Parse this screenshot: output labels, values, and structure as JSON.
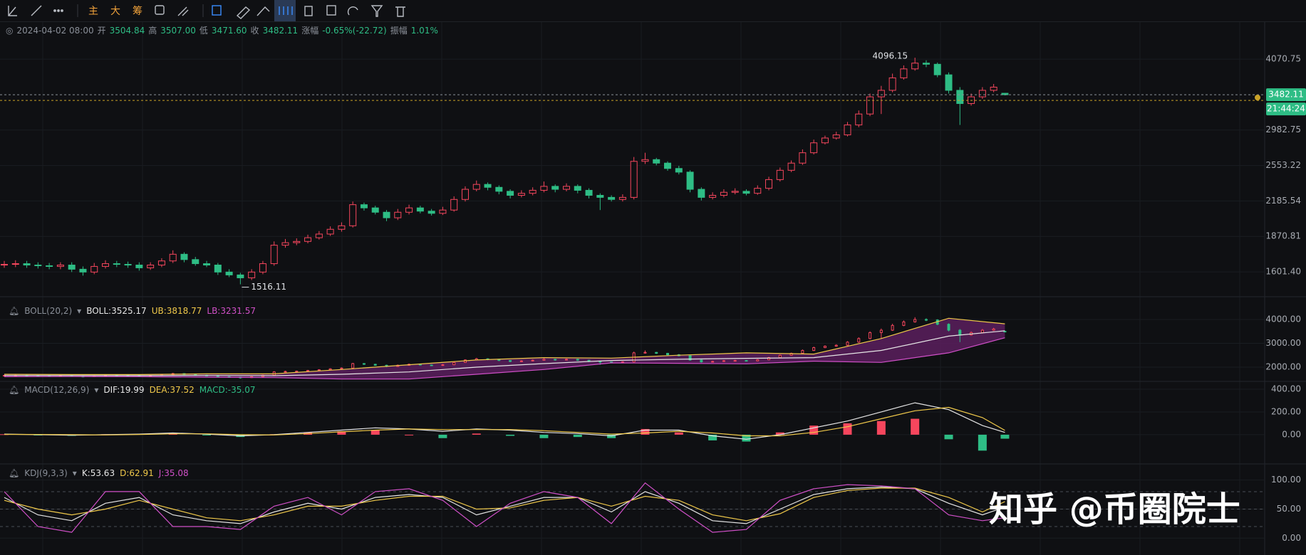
{
  "toolbar": {
    "labels": [
      "主",
      "大",
      "筹"
    ]
  },
  "info": {
    "date": "2024-04-02 08:00",
    "color": "#2ebd85",
    "items": [
      {
        "label": "开",
        "value": "3504.84"
      },
      {
        "label": "高",
        "value": "3507.00"
      },
      {
        "label": "低",
        "value": "3471.60"
      },
      {
        "label": "收",
        "value": "3482.11"
      },
      {
        "label": "涨幅",
        "value": "-0.65%(-22.72)"
      },
      {
        "label": "振幅",
        "value": "1.01%"
      }
    ]
  },
  "watermark": "知乎 @币圈院士",
  "chart_data": [
    {
      "type": "candlestick",
      "log_scale": true,
      "grid": true,
      "up_color": "#f6465d",
      "down_color": "#2ebd85",
      "open": [
        1650,
        1655,
        1660,
        1650,
        1645,
        1640,
        1650,
        1620,
        1600,
        1640,
        1660,
        1655,
        1650,
        1630,
        1650,
        1680,
        1730,
        1690,
        1660,
        1650,
        1600,
        1580,
        1560,
        1600,
        1660,
        1800,
        1820,
        1830,
        1860,
        1890,
        1930,
        1960,
        2150,
        2120,
        2080,
        2030,
        2080,
        2120,
        2090,
        2070,
        2100,
        2200,
        2300,
        2350,
        2320,
        2280,
        2240,
        2260,
        2290,
        2330,
        2300,
        2330,
        2290,
        2240,
        2220,
        2200,
        2220,
        2600,
        2620,
        2580,
        2520,
        2480,
        2300,
        2220,
        2240,
        2270,
        2280,
        2260,
        2310,
        2400,
        2500,
        2580,
        2700,
        2820,
        2880,
        2920,
        3050,
        3200,
        3450,
        3550,
        3750,
        3900,
        4000,
        3980,
        3800,
        3550,
        3350,
        3450,
        3550,
        3504.84
      ],
      "high": [
        1680,
        1685,
        1680,
        1670,
        1665,
        1670,
        1670,
        1640,
        1665,
        1685,
        1680,
        1675,
        1670,
        1670,
        1700,
        1760,
        1745,
        1710,
        1680,
        1665,
        1620,
        1595,
        1620,
        1680,
        1830,
        1850,
        1855,
        1885,
        1915,
        1955,
        1990,
        2180,
        2170,
        2140,
        2100,
        2110,
        2150,
        2140,
        2110,
        2130,
        2230,
        2330,
        2390,
        2370,
        2340,
        2300,
        2290,
        2320,
        2380,
        2350,
        2360,
        2350,
        2310,
        2260,
        2240,
        2250,
        2650,
        2700,
        2640,
        2600,
        2550,
        2500,
        2320,
        2270,
        2300,
        2310,
        2300,
        2340,
        2430,
        2530,
        2610,
        2740,
        2860,
        2910,
        2960,
        3090,
        3250,
        3500,
        3620,
        3820,
        3960,
        4096.15,
        4050,
        4010,
        3840,
        3600,
        3500,
        3600,
        3650,
        3507.0
      ],
      "low": [
        1630,
        1635,
        1630,
        1625,
        1620,
        1620,
        1600,
        1575,
        1585,
        1625,
        1635,
        1630,
        1610,
        1615,
        1635,
        1665,
        1670,
        1645,
        1635,
        1580,
        1565,
        1516.11,
        1545,
        1585,
        1645,
        1780,
        1800,
        1815,
        1845,
        1875,
        1910,
        1945,
        2095,
        2060,
        2000,
        2010,
        2060,
        2070,
        2050,
        2055,
        2085,
        2180,
        2280,
        2290,
        2250,
        2210,
        2220,
        2240,
        2270,
        2270,
        2280,
        2260,
        2210,
        2100,
        2180,
        2180,
        2200,
        2570,
        2555,
        2495,
        2455,
        2270,
        2190,
        2200,
        2220,
        2250,
        2240,
        2245,
        2290,
        2380,
        2480,
        2560,
        2680,
        2800,
        2860,
        2900,
        3020,
        3170,
        3200,
        3520,
        3720,
        3870,
        3930,
        3760,
        3500,
        3050,
        3320,
        3420,
        3520,
        3471.6
      ],
      "close": [
        1655,
        1660,
        1650,
        1645,
        1640,
        1650,
        1620,
        1600,
        1640,
        1660,
        1655,
        1650,
        1630,
        1650,
        1680,
        1730,
        1690,
        1660,
        1650,
        1600,
        1580,
        1560,
        1600,
        1660,
        1800,
        1820,
        1830,
        1860,
        1890,
        1930,
        1960,
        2150,
        2120,
        2080,
        2030,
        2080,
        2120,
        2090,
        2070,
        2100,
        2200,
        2300,
        2350,
        2320,
        2280,
        2240,
        2260,
        2290,
        2330,
        2300,
        2330,
        2290,
        2240,
        2220,
        2200,
        2220,
        2600,
        2620,
        2580,
        2520,
        2480,
        2300,
        2220,
        2240,
        2270,
        2280,
        2260,
        2310,
        2400,
        2500,
        2580,
        2700,
        2820,
        2880,
        2920,
        3050,
        3200,
        3450,
        3550,
        3750,
        3900,
        4000,
        3980,
        3800,
        3550,
        3350,
        3450,
        3550,
        3600,
        3482.11
      ],
      "ylim": [
        1445,
        4642
      ],
      "yticks": [
        4070.75,
        2982.75,
        2553.22,
        2185.54,
        1870.81,
        {
          "value": 1601.4,
          "label": "1601.40"
        }
      ],
      "annotations": {
        "high": "4096.15",
        "low": "1516.11"
      },
      "last_price_label": "3482.11",
      "countdown": "21:44:24"
    },
    {
      "type": "line",
      "title": "BOLL(20,2)",
      "band": true,
      "band_color": "#5a1f5e",
      "x": [
        0,
        6,
        12,
        18,
        24,
        30,
        36,
        42,
        48,
        54,
        60,
        66,
        72,
        78,
        84,
        89
      ],
      "series": [
        {
          "name": "BOLL:3525.17",
          "color": "#e6e6e6",
          "values": [
            1650,
            1648,
            1645,
            1650,
            1640,
            1700,
            1800,
            2000,
            2150,
            2280,
            2330,
            2370,
            2400,
            2700,
            3300,
            3525.17
          ]
        },
        {
          "name": "UB:3818.77",
          "color": "#f0c94a",
          "values": [
            1700,
            1690,
            1690,
            1720,
            1720,
            1900,
            2100,
            2300,
            2400,
            2380,
            2500,
            2600,
            2550,
            3200,
            4050,
            3818.77
          ]
        },
        {
          "name": "LB:3231.57",
          "color": "#d050c8",
          "values": [
            1600,
            1605,
            1600,
            1580,
            1560,
            1500,
            1500,
            1700,
            1900,
            2180,
            2160,
            2140,
            2250,
            2200,
            2600,
            3231.57
          ]
        }
      ],
      "ylim": [
        1522,
        4657
      ],
      "yticks": [
        {
          "value": 4000,
          "label": "4000.00"
        },
        {
          "value": 3000,
          "label": "3000.00"
        },
        {
          "value": 2000,
          "label": "2000.00"
        }
      ]
    },
    {
      "type": "combo",
      "title": "MACD(12,26,9)",
      "up_color": "#f6465d",
      "down_color": "#2ebd85",
      "x": [
        0,
        3,
        6,
        9,
        12,
        15,
        18,
        21,
        24,
        27,
        30,
        33,
        36,
        39,
        42,
        45,
        48,
        51,
        54,
        57,
        60,
        63,
        66,
        69,
        72,
        75,
        78,
        81,
        84,
        87,
        89
      ],
      "series": [
        {
          "name": "DIF:19.99",
          "color": "#e6e6e6",
          "type": "line",
          "values": [
            5,
            0,
            -5,
            0,
            5,
            15,
            5,
            -10,
            0,
            20,
            40,
            60,
            50,
            30,
            50,
            40,
            20,
            10,
            -10,
            40,
            40,
            -10,
            -40,
            0,
            60,
            120,
            200,
            280,
            220,
            80,
            19.99
          ]
        },
        {
          "name": "DEA:37.52",
          "color": "#f0c94a",
          "type": "line",
          "values": [
            3,
            2,
            0,
            -2,
            2,
            8,
            8,
            0,
            -2,
            10,
            25,
            40,
            50,
            45,
            45,
            45,
            35,
            20,
            5,
            15,
            30,
            15,
            -10,
            -10,
            20,
            70,
            140,
            210,
            240,
            150,
            37.52
          ]
        },
        {
          "name": "MACD:-35.07",
          "color": "#2ebd85",
          "type": "bar",
          "values": [
            4,
            -4,
            -10,
            4,
            6,
            14,
            -6,
            -20,
            4,
            20,
            30,
            40,
            0,
            -30,
            10,
            -10,
            -30,
            -20,
            -30,
            50,
            20,
            -50,
            -60,
            20,
            80,
            100,
            120,
            140,
            -40,
            -140,
            -35.07
          ]
        }
      ],
      "ylim": [
        -238,
        456
      ],
      "yticks": [
        {
          "value": 400,
          "label": "400.00"
        },
        {
          "value": 200,
          "label": "200.00"
        },
        {
          "value": 0,
          "label": "0.00"
        }
      ]
    },
    {
      "type": "line",
      "title": "KDJ(9,3,3)",
      "x": [
        0,
        3,
        6,
        9,
        12,
        15,
        18,
        21,
        24,
        27,
        30,
        33,
        36,
        39,
        42,
        45,
        48,
        51,
        54,
        57,
        60,
        63,
        66,
        69,
        72,
        75,
        78,
        81,
        84,
        87,
        89
      ],
      "series": [
        {
          "name": "K:53.63",
          "color": "#e6e6e6",
          "values": [
            70,
            40,
            30,
            60,
            70,
            40,
            30,
            25,
            45,
            60,
            50,
            70,
            75,
            70,
            40,
            55,
            70,
            70,
            45,
            80,
            60,
            30,
            25,
            50,
            75,
            85,
            88,
            85,
            60,
            40,
            53.63
          ]
        },
        {
          "name": "D:62.91",
          "color": "#f0c94a",
          "values": [
            65,
            50,
            40,
            50,
            65,
            50,
            35,
            30,
            40,
            55,
            55,
            65,
            72,
            72,
            50,
            52,
            65,
            70,
            55,
            72,
            65,
            40,
            30,
            42,
            70,
            82,
            86,
            86,
            70,
            45,
            62.91
          ]
        },
        {
          "name": "J:35.08",
          "color": "#d050c8",
          "values": [
            80,
            20,
            10,
            80,
            80,
            20,
            20,
            15,
            55,
            70,
            40,
            80,
            85,
            65,
            20,
            60,
            80,
            70,
            25,
            95,
            50,
            10,
            15,
            65,
            85,
            92,
            90,
            85,
            40,
            30,
            35.08
          ]
        }
      ],
      "reference_lines": [
        80,
        50,
        20
      ],
      "ylim": [
        -29,
        124
      ],
      "yticks": [
        {
          "value": 100,
          "label": "100.00"
        },
        {
          "value": 50,
          "label": "50.00"
        },
        {
          "value": 0,
          "label": "0.00"
        }
      ]
    }
  ]
}
